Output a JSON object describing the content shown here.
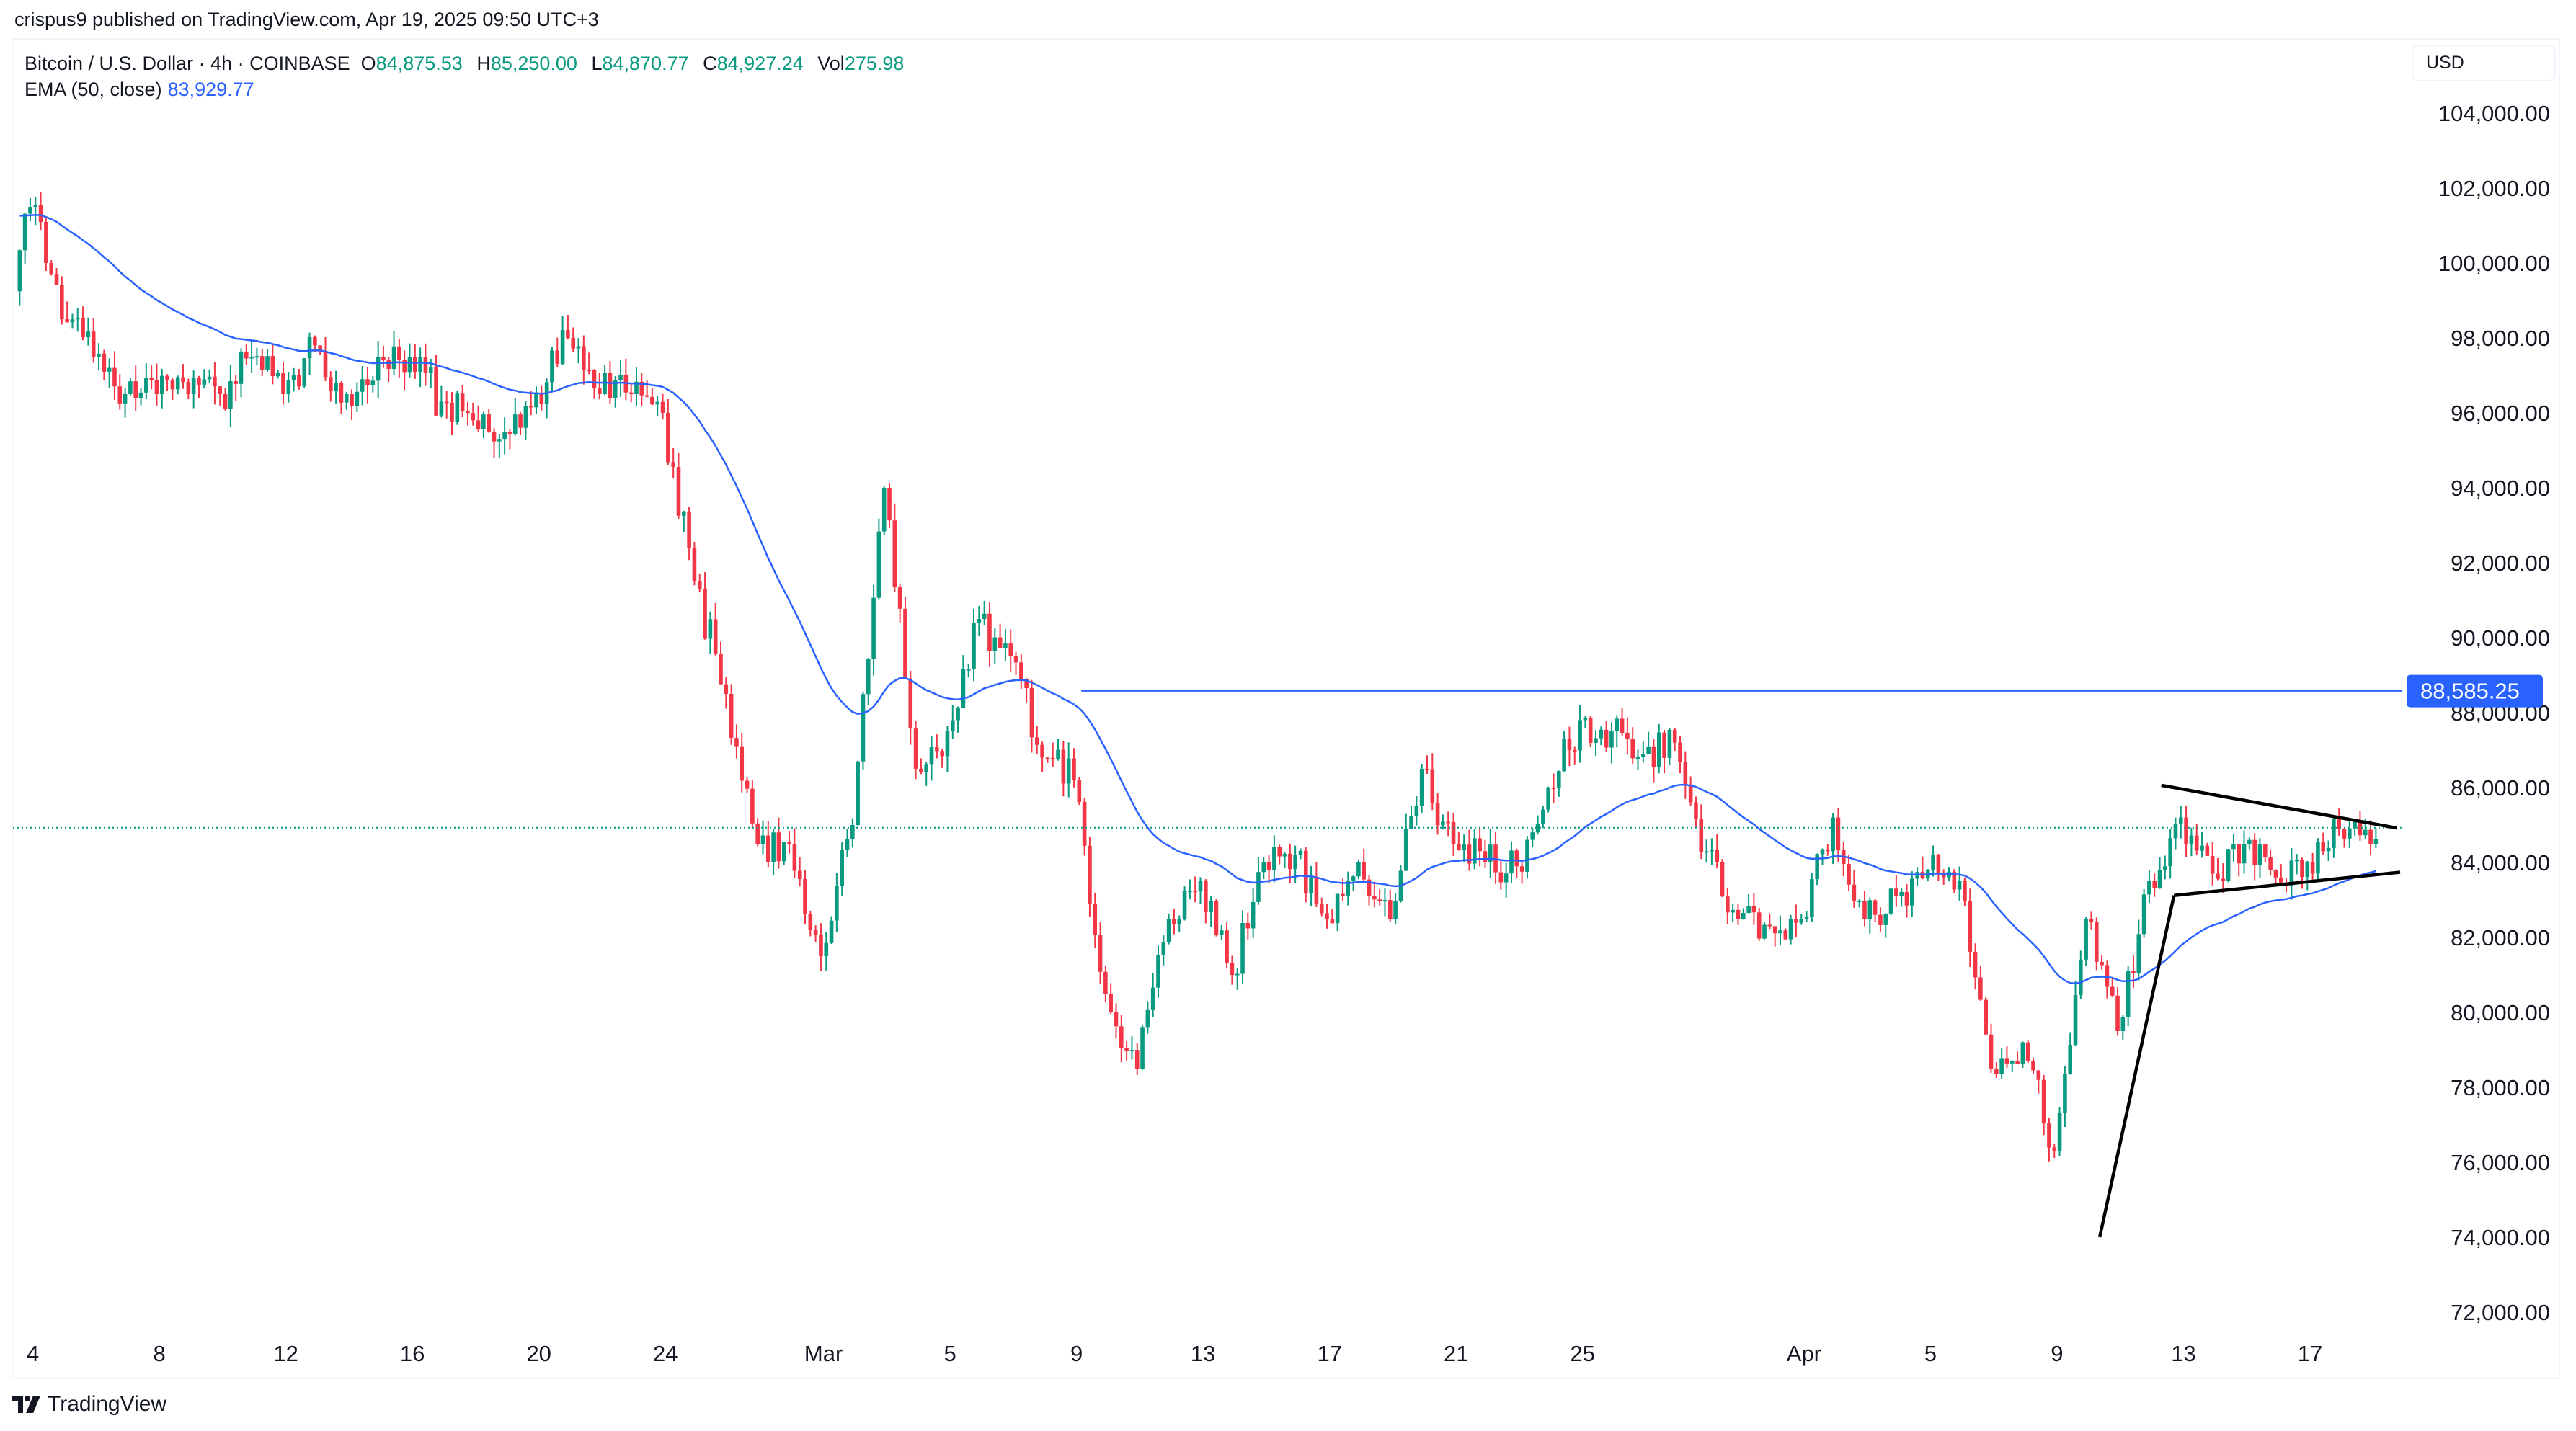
{
  "header": {
    "published": "crispus9 published on TradingView.com, Apr 19, 2025 09:50 UTC+3"
  },
  "legend": {
    "symbol": "Bitcoin / U.S. Dollar · 4h · COINBASE",
    "o_label": "O",
    "o": "84,875.53",
    "h_label": "H",
    "h": "85,250.00",
    "l_label": "L",
    "l": "84,870.77",
    "c_label": "C",
    "c": "84,927.24",
    "vol_label": "Vol",
    "vol": "275.98",
    "ema_label": "EMA (50, close)",
    "ema": "83,929.77"
  },
  "currency": "USD",
  "brand": "TradingView",
  "colors": {
    "up": "#089981",
    "down": "#F23645",
    "ema": "#2962FF",
    "drawing": "#000000"
  },
  "chart_data": {
    "type": "candlestick",
    "timeframe": "4h",
    "title": "Bitcoin / U.S. Dollar",
    "ylim": [
      71000,
      105500
    ],
    "y_ticks": [
      "104,000.00",
      "102,000.00",
      "100,000.00",
      "98,000.00",
      "96,000.00",
      "94,000.00",
      "92,000.00",
      "90,000.00",
      "88,000.00",
      "86,000.00",
      "84,000.00",
      "82,000.00",
      "80,000.00",
      "78,000.00",
      "76,000.00",
      "74,000.00",
      "72,000.00"
    ],
    "y_tick_values": [
      104000,
      102000,
      100000,
      98000,
      96000,
      94000,
      92000,
      90000,
      88000,
      86000,
      84000,
      82000,
      80000,
      78000,
      76000,
      74000,
      72000
    ],
    "x_ticks": [
      {
        "label": "4",
        "day": 0
      },
      {
        "label": "8",
        "day": 4
      },
      {
        "label": "12",
        "day": 8
      },
      {
        "label": "16",
        "day": 12
      },
      {
        "label": "20",
        "day": 16
      },
      {
        "label": "24",
        "day": 20
      },
      {
        "label": "Mar",
        "day": 25
      },
      {
        "label": "5",
        "day": 29
      },
      {
        "label": "9",
        "day": 33
      },
      {
        "label": "13",
        "day": 37
      },
      {
        "label": "17",
        "day": 41
      },
      {
        "label": "21",
        "day": 45
      },
      {
        "label": "25",
        "day": 49
      },
      {
        "label": "Apr",
        "day": 56
      },
      {
        "label": "5",
        "day": 60
      },
      {
        "label": "9",
        "day": 64
      },
      {
        "label": "13",
        "day": 68
      },
      {
        "label": "17",
        "day": 72
      }
    ],
    "start_open": 97000,
    "daily_closes_from_feb3": [
      101500,
      98500,
      97500,
      96500,
      96500,
      96500,
      96500,
      97500,
      96500,
      97800,
      96500,
      97500,
      97500,
      96300,
      95800,
      95500,
      96500,
      98000,
      96500,
      96500,
      96000,
      91500,
      88500,
      84500,
      84500,
      81500,
      85000,
      94000,
      86500,
      87500,
      90500,
      89500,
      86800,
      86200,
      80500,
      78500,
      82500,
      83500,
      81000,
      84000,
      84200,
      82500,
      84000,
      82500,
      86500,
      84500,
      84000,
      83900,
      86000,
      87800,
      87500,
      86900,
      87200,
      84300,
      82500,
      82300,
      82500,
      85200,
      82500,
      83100,
      83800,
      83500,
      78500,
      79200,
      76300,
      82500,
      79500,
      83500,
      85200,
      83700,
      84500,
      83600,
      84000,
      84900,
      84500,
      84927
    ],
    "ema_period": 50,
    "ema_last": 83929.77,
    "last_close": 84927.24,
    "horizontal_line": {
      "price": 88585.25,
      "label": "88,585.25",
      "from_day": 33.15
    },
    "trendlines": [
      {
        "name": "flagpole",
        "p1": {
          "day": 65.35,
          "price": 74000
        },
        "p2": {
          "day": 67.7,
          "price": 83120
        }
      },
      {
        "name": "pennant-lower",
        "p1": {
          "day": 67.7,
          "price": 83120
        },
        "p2": {
          "day": 74.85,
          "price": 83740
        }
      },
      {
        "name": "pennant-upper",
        "p1": {
          "day": 67.3,
          "price": 86060
        },
        "p2": {
          "day": 74.75,
          "price": 84920
        }
      }
    ]
  }
}
